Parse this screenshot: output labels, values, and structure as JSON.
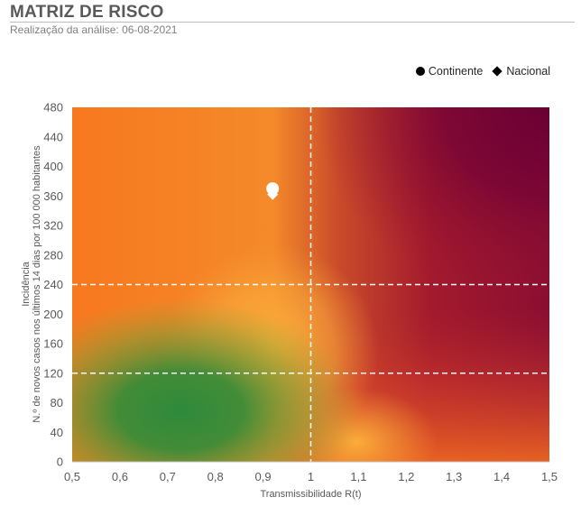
{
  "header": {
    "title": "MATRIZ DE RISCO",
    "subtitle": "Realização da análise: 06-08-2021"
  },
  "legend": {
    "items": [
      {
        "label": "Continente",
        "marker": "circle"
      },
      {
        "label": "Nacional",
        "marker": "diamond"
      }
    ]
  },
  "chart_data": {
    "type": "scatter",
    "xlabel": "Transmissibilidade R(t)",
    "ylabel_lines": [
      "Incidência",
      "N.º de novos casos nos últimos 14 dias por 100 000 habitantes"
    ],
    "xlim": [
      0.5,
      1.5
    ],
    "ylim": [
      0,
      480
    ],
    "x_ticks": [
      0.5,
      0.6,
      0.7,
      0.8,
      0.9,
      1.0,
      1.1,
      1.2,
      1.3,
      1.4,
      1.5
    ],
    "x_tick_labels": [
      "0,5",
      "0,6",
      "0,7",
      "0,8",
      "0,9",
      "1",
      "1,1",
      "1,2",
      "1,3",
      "1,4",
      "1,5"
    ],
    "y_ticks": [
      0,
      40,
      80,
      120,
      160,
      200,
      240,
      280,
      320,
      360,
      400,
      440,
      480
    ],
    "y_tick_labels": [
      "0",
      "40",
      "80",
      "120",
      "160",
      "200",
      "240",
      "280",
      "320",
      "360",
      "400",
      "440",
      "480"
    ],
    "threshold_lines": {
      "x": [
        1.0
      ],
      "y": [
        120,
        240
      ]
    },
    "grid": false,
    "legend_position": "top-right",
    "background": "risk gradient: green (low R, low incidence) to orange to dark red (high R, high incidence)",
    "series": [
      {
        "name": "Continente",
        "marker": "circle",
        "color": "#ffffff",
        "points": [
          {
            "x": 0.92,
            "y": 370
          }
        ]
      },
      {
        "name": "Nacional",
        "marker": "diamond",
        "color": "#ffffff",
        "points": [
          {
            "x": 0.92,
            "y": 362
          }
        ]
      }
    ]
  }
}
